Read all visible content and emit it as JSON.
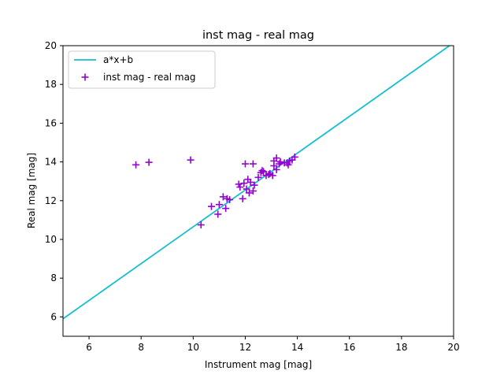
{
  "chart_data": {
    "type": "scatter",
    "title": "inst mag - real mag",
    "xlabel": "Instrument mag [mag]",
    "ylabel": "Real mag [mag]",
    "xlim": [
      5,
      20
    ],
    "ylim": [
      5,
      20
    ],
    "xticks": [
      "6",
      "8",
      "10",
      "12",
      "14",
      "16",
      "18",
      "20"
    ],
    "yticks": [
      "6",
      "8",
      "10",
      "12",
      "14",
      "16",
      "18",
      "20"
    ],
    "grid": false,
    "legend_position": "top-left",
    "fit_line": {
      "name": "a*x+b",
      "color": "#17becf",
      "x": [
        5,
        20
      ],
      "y": [
        5.9,
        20.15
      ]
    },
    "series": [
      {
        "name": "inst mag - real mag",
        "marker": "plus",
        "color": "#9400d3",
        "points": [
          [
            7.8,
            13.85
          ],
          [
            8.3,
            13.98
          ],
          [
            9.9,
            14.1
          ],
          [
            10.3,
            10.75
          ],
          [
            10.7,
            11.7
          ],
          [
            10.95,
            11.3
          ],
          [
            11.0,
            11.8
          ],
          [
            11.15,
            12.2
          ],
          [
            11.25,
            11.6
          ],
          [
            11.3,
            12.1
          ],
          [
            11.4,
            12.05
          ],
          [
            11.75,
            12.85
          ],
          [
            11.8,
            12.7
          ],
          [
            11.9,
            12.1
          ],
          [
            11.95,
            12.9
          ],
          [
            12.0,
            13.9
          ],
          [
            12.05,
            12.6
          ],
          [
            12.1,
            13.1
          ],
          [
            12.15,
            12.4
          ],
          [
            12.2,
            12.95
          ],
          [
            12.3,
            13.9
          ],
          [
            12.3,
            12.5
          ],
          [
            12.35,
            12.8
          ],
          [
            12.5,
            13.2
          ],
          [
            12.6,
            13.45
          ],
          [
            12.65,
            13.55
          ],
          [
            12.7,
            13.5
          ],
          [
            12.8,
            13.3
          ],
          [
            12.9,
            13.35
          ],
          [
            12.95,
            13.4
          ],
          [
            13.05,
            13.3
          ],
          [
            13.1,
            13.8
          ],
          [
            13.1,
            14.05
          ],
          [
            13.2,
            14.2
          ],
          [
            13.2,
            13.6
          ],
          [
            13.3,
            13.9
          ],
          [
            13.35,
            14.0
          ],
          [
            13.5,
            13.95
          ],
          [
            13.6,
            13.95
          ],
          [
            13.65,
            13.85
          ],
          [
            13.7,
            14.05
          ],
          [
            13.8,
            14.1
          ],
          [
            13.9,
            14.25
          ]
        ]
      }
    ]
  }
}
